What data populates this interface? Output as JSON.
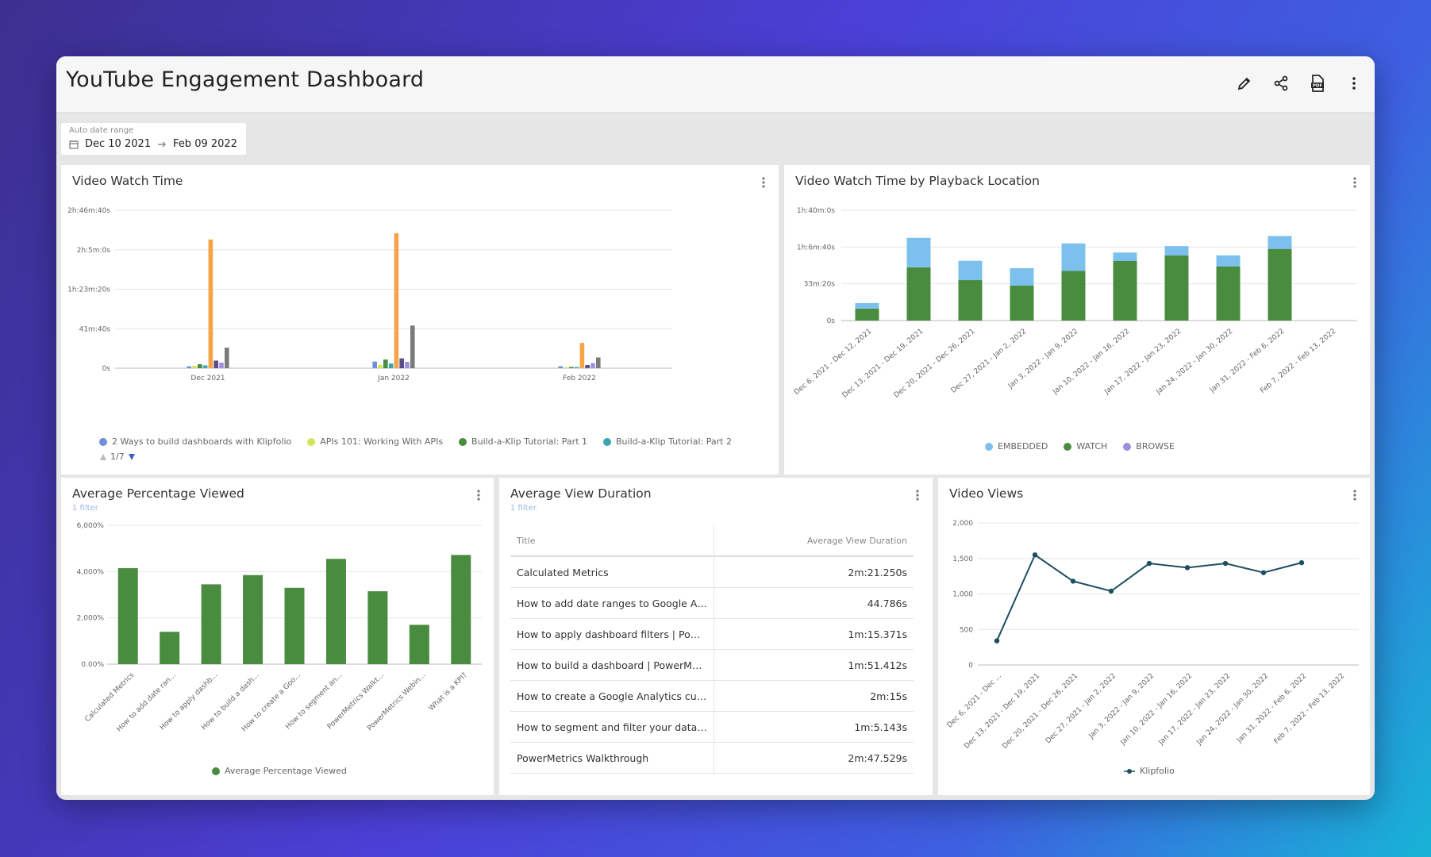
{
  "app": {
    "title": "YouTube Engagement Dashboard"
  },
  "toolbar": {
    "icons": [
      "pencil-icon",
      "share-icon",
      "pdf-icon",
      "more-vertical-icon"
    ]
  },
  "date_range": {
    "label": "Auto date range",
    "start": "Dec 10 2021",
    "end": "Feb 09 2022"
  },
  "panels": {
    "watch_time": {
      "title": "Video Watch Time"
    },
    "playback": {
      "title": "Video Watch Time by Playback Location"
    },
    "avg_pct": {
      "title": "Average Percentage Viewed",
      "filter": "1 filter"
    },
    "avg_dur": {
      "title": "Average View Duration",
      "filter": "1 filter"
    },
    "views": {
      "title": "Video Views"
    }
  },
  "avg_view_duration_table": {
    "headers": [
      "Title",
      "Average View Duration"
    ],
    "rows": [
      [
        "Calculated Metrics",
        "2m:21.250s"
      ],
      [
        "How to add date ranges to Google Ana...",
        "44.786s"
      ],
      [
        "How to apply dashboard filters | Power...",
        "1m:15.371s"
      ],
      [
        "How to build a dashboard | PowerMetri...",
        "1m:51.412s"
      ],
      [
        "How to create a Google Analytics cust...",
        "2m:15s"
      ],
      [
        "How to segment and filter your data | ...",
        "1m:5.143s"
      ],
      [
        "PowerMetrics Walkthrough",
        "2m:47.529s"
      ]
    ]
  },
  "legend_pager": "1/7",
  "colors": {
    "green": "#4a8c3f",
    "light_blue": "#7cc0ee",
    "navy": "#1e4e62",
    "series": [
      "#6f8fd6",
      "#d6e35a",
      "#4a8c3f",
      "#3aa6b0",
      "#f5a446",
      "#5b4b8a",
      "#9e8fdc",
      "#7a7a7a"
    ]
  },
  "chart_data": [
    {
      "type": "bar",
      "title": "Video Watch Time",
      "y_tick_labels": [
        "0s",
        "41m:40s",
        "1h:23m:20s",
        "2h:5m:0s",
        "2h:46m:40s"
      ],
      "ylim_seconds": [
        0,
        10000
      ],
      "x_tick_labels": [
        "Dec 2021",
        "Jan 2022",
        "Feb 2022"
      ],
      "categories": [
        "Dec 2021",
        "Jan 2022",
        "Feb 2022"
      ],
      "series": [
        {
          "name": "2 Ways to build dashboards with Klipfolio",
          "values": [
            120,
            420,
            120
          ]
        },
        {
          "name": "APIs 101: Working With APIs",
          "values": [
            150,
            200,
            60
          ]
        },
        {
          "name": "Build-a-Klip Tutorial: Part 1",
          "values": [
            250,
            550,
            80
          ]
        },
        {
          "name": "Build-a-Klip Tutorial: Part 2",
          "values": [
            180,
            300,
            70
          ]
        },
        {
          "name": "",
          "values": [
            8150,
            8550,
            1600
          ]
        },
        {
          "name": "",
          "values": [
            480,
            620,
            200
          ]
        },
        {
          "name": "",
          "values": [
            350,
            400,
            320
          ]
        },
        {
          "name": "",
          "values": [
            1300,
            2700,
            680
          ]
        }
      ],
      "legend": [
        "2 Ways to build dashboards with Klipfolio",
        "APIs 101: Working With APIs",
        "Build-a-Klip Tutorial: Part 1",
        "Build-a-Klip Tutorial: Part 2"
      ]
    },
    {
      "type": "bar",
      "stacked": true,
      "title": "Video Watch Time by Playback Location",
      "y_tick_labels": [
        "0s",
        "33m:20s",
        "1h:6m:40s",
        "1h:40m:0s"
      ],
      "ylim_seconds": [
        0,
        6000
      ],
      "categories": [
        "Dec 6, 2021 - Dec 12, 2021",
        "Dec 13, 2021 - Dec 19, 2021",
        "Dec 20, 2021 - Dec 26, 2021",
        "Dec 27, 2021 - Jan 2, 2022",
        "Jan 3, 2022 - Jan 9, 2022",
        "Jan 10, 2022 - Jan 16, 2022",
        "Jan 17, 2022 - Jan 23, 2022",
        "Jan 24, 2022 - Jan 30, 2022",
        "Jan 31, 2022 - Feb 6, 2022",
        "Feb 7, 2022 - Feb 13, 2022"
      ],
      "series": [
        {
          "name": "WATCH",
          "values": [
            650,
            2900,
            2200,
            1900,
            2700,
            3250,
            3550,
            2950,
            3900,
            0
          ]
        },
        {
          "name": "EMBEDDED",
          "values": [
            300,
            1600,
            1050,
            950,
            1500,
            450,
            500,
            600,
            700,
            0
          ]
        },
        {
          "name": "BROWSE",
          "values": [
            0,
            0,
            0,
            0,
            0,
            0,
            0,
            0,
            0,
            0
          ]
        }
      ],
      "legend": [
        "EMBEDDED",
        "WATCH",
        "BROWSE"
      ]
    },
    {
      "type": "bar",
      "title": "Average Percentage Viewed",
      "y_tick_labels": [
        "0.00%",
        "2,000%",
        "4,000%",
        "6,000%"
      ],
      "ylim": [
        0,
        6000
      ],
      "categories": [
        "Calculated Metrics",
        "How to add date ran...",
        "How to apply dashb...",
        "How to build a dash...",
        "How to create a Goo...",
        "How to segment an...",
        "PowerMetrics Walkt...",
        "PowerMetrics Webin...",
        "What is a KPI?"
      ],
      "series": [
        {
          "name": "Average Percentage Viewed",
          "values": [
            4150,
            1400,
            3450,
            3850,
            3300,
            4550,
            3150,
            1700,
            4720
          ]
        }
      ]
    },
    {
      "type": "line",
      "title": "Video Views",
      "y_tick_labels": [
        "0",
        "500",
        "1,000",
        "1,500",
        "2,000"
      ],
      "ylim": [
        0,
        2000
      ],
      "categories": [
        "Dec 6, 2021 - Dec ...",
        "Dec 13, 2021 - Dec 19, 2021",
        "Dec 20, 2021 - Dec 26, 2021",
        "Dec 27, 2021 - Jan 2, 2022",
        "Jan 3, 2022 - Jan 9, 2022",
        "Jan 10, 2022 - Jan 16, 2022",
        "Jan 17, 2022 - Jan 23, 2022",
        "Jan 24, 2022 - Jan 30, 2022",
        "Jan 31, 2022 - Feb 6, 2022",
        "Feb 7, 2022 - Feb 13, 2022"
      ],
      "series": [
        {
          "name": "Klipfolio",
          "values": [
            340,
            1550,
            1180,
            1040,
            1430,
            1370,
            1430,
            1300,
            1440,
            null
          ]
        }
      ]
    }
  ]
}
